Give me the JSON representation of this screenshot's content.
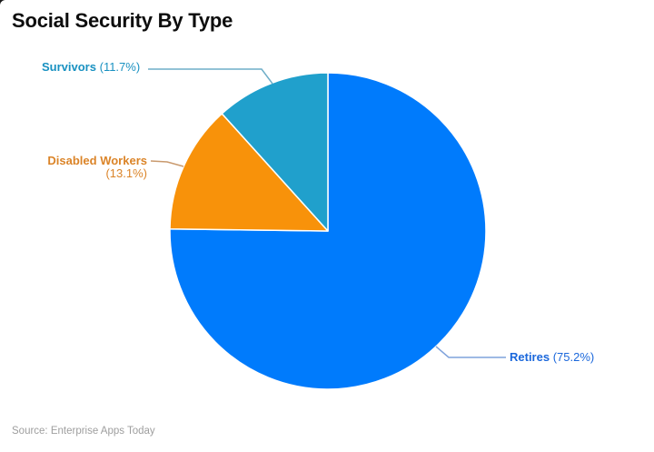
{
  "title": "Social Security By Type",
  "source": "Source: Enterprise Apps Today",
  "chart_data": {
    "type": "pie",
    "title": "Social Security By Type",
    "categories": [
      "Retires",
      "Disabled Workers",
      "Survivors"
    ],
    "values": [
      75.2,
      13.1,
      11.7
    ],
    "unit": "%",
    "slice_colors": [
      "#007BFC",
      "#F8920A",
      "#20A0CC"
    ],
    "label_colors": [
      "#1A67DB",
      "#DB8428",
      "#1991C1"
    ],
    "leader_line_colors": [
      "#7FA3DC",
      "#C99A6E",
      "#6FAEC8"
    ],
    "start_angle": "12 o'clock",
    "direction": "clockwise",
    "legend_position": "outside-callout-labels",
    "source": "Source: Enterprise Apps Today"
  },
  "labels": {
    "retires": {
      "name": "Retires",
      "pct": "(75.2%)"
    },
    "disabled": {
      "name": "Disabled Workers",
      "pct": "(13.1%)"
    },
    "survivors": {
      "name": "Survivors",
      "pct": "(11.7%)"
    }
  }
}
